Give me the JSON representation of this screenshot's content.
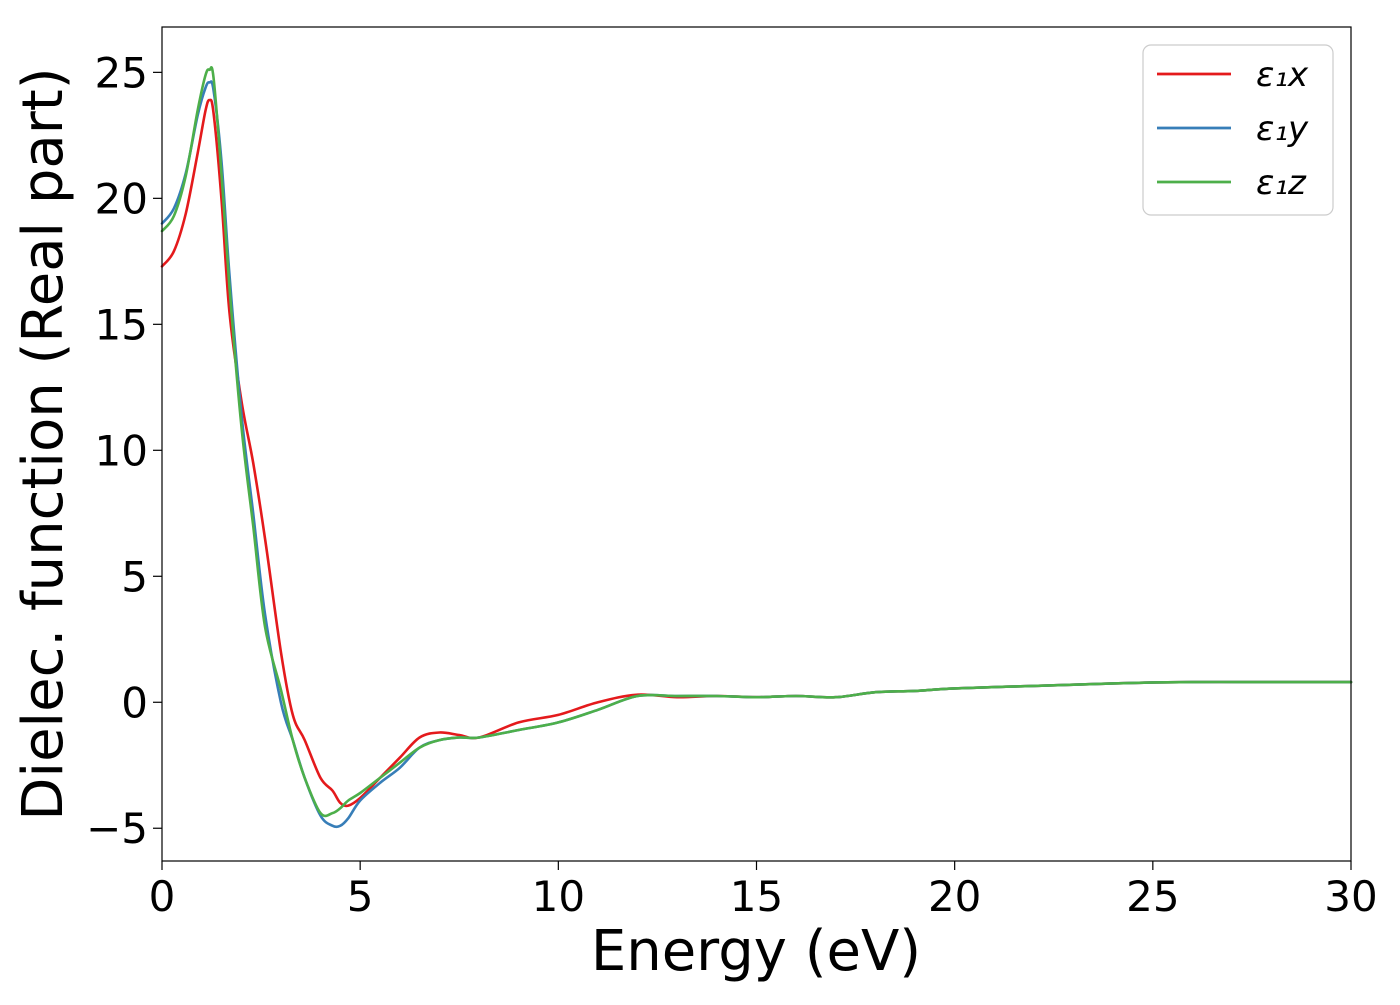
{
  "chart_data": {
    "type": "line",
    "title": "",
    "xlabel": "Energy (eV)",
    "ylabel": "Dielec. function (Real part)",
    "xlim": [
      0,
      30
    ],
    "ylim": [
      -6.3,
      26.8
    ],
    "xticks": [
      0,
      5,
      10,
      15,
      20,
      25,
      30
    ],
    "xtick_labels": [
      "0",
      "5",
      "10",
      "15",
      "20",
      "25",
      "30"
    ],
    "yticks": [
      -5,
      0,
      5,
      10,
      15,
      20,
      25
    ],
    "ytick_labels": [
      "−5",
      "0",
      "5",
      "10",
      "15",
      "20",
      "25"
    ],
    "grid": false,
    "legend_position": "top-right",
    "series": [
      {
        "name": "ε₁x",
        "color": "#e41a1c",
        "x": [
          0,
          0.3,
          0.6,
          0.9,
          1.1,
          1.2,
          1.3,
          1.5,
          1.7,
          2.0,
          2.3,
          2.6,
          3.0,
          3.3,
          3.6,
          4.0,
          4.3,
          4.5,
          4.7,
          5.0,
          5.5,
          6.0,
          6.5,
          7.0,
          7.5,
          8.0,
          9.0,
          10.0,
          11.0,
          12.0,
          13.0,
          14.0,
          15.0,
          16.0,
          17.0,
          18.0,
          19.0,
          20.0,
          22.0,
          24.0,
          26.0,
          28.0,
          30.0
        ],
        "y": [
          17.3,
          17.9,
          19.4,
          21.8,
          23.5,
          23.9,
          23.4,
          20.0,
          15.5,
          12.0,
          9.5,
          6.5,
          2.0,
          -0.5,
          -1.5,
          -3.0,
          -3.5,
          -4.0,
          -4.1,
          -3.8,
          -3.0,
          -2.2,
          -1.4,
          -1.2,
          -1.3,
          -1.4,
          -0.8,
          -0.5,
          0.0,
          0.3,
          0.2,
          0.25,
          0.2,
          0.25,
          0.2,
          0.4,
          0.45,
          0.55,
          0.65,
          0.75,
          0.8,
          0.8,
          0.8
        ]
      },
      {
        "name": "ε₁y",
        "color": "#377eb8",
        "x": [
          0,
          0.3,
          0.6,
          0.9,
          1.1,
          1.2,
          1.3,
          1.5,
          1.7,
          2.0,
          2.3,
          2.6,
          3.0,
          3.3,
          3.6,
          4.0,
          4.3,
          4.5,
          4.7,
          5.0,
          5.5,
          6.0,
          6.5,
          7.0,
          7.5,
          8.0,
          9.0,
          10.0,
          11.0,
          12.0,
          13.0,
          14.0,
          15.0,
          16.0,
          17.0,
          18.0,
          19.0,
          20.0,
          22.0,
          24.0,
          26.0,
          28.0,
          30.0
        ],
        "y": [
          19.0,
          19.6,
          21.0,
          23.3,
          24.4,
          24.6,
          24.3,
          21.5,
          17.0,
          11.5,
          7.5,
          3.5,
          0.0,
          -1.5,
          -3.0,
          -4.5,
          -4.9,
          -4.9,
          -4.6,
          -3.9,
          -3.2,
          -2.6,
          -1.8,
          -1.5,
          -1.4,
          -1.4,
          -1.1,
          -0.8,
          -0.3,
          0.25,
          0.25,
          0.25,
          0.2,
          0.25,
          0.2,
          0.4,
          0.45,
          0.55,
          0.65,
          0.75,
          0.8,
          0.8,
          0.8
        ]
      },
      {
        "name": "ε₁z",
        "color": "#4daf4a",
        "x": [
          0,
          0.3,
          0.6,
          0.9,
          1.1,
          1.2,
          1.3,
          1.5,
          1.7,
          2.0,
          2.3,
          2.6,
          3.0,
          3.3,
          3.6,
          4.0,
          4.3,
          4.5,
          4.7,
          5.0,
          5.5,
          6.0,
          6.5,
          7.0,
          7.5,
          8.0,
          9.0,
          10.0,
          11.0,
          12.0,
          13.0,
          14.0,
          15.0,
          16.0,
          17.0,
          18.0,
          19.0,
          20.0,
          22.0,
          24.0,
          26.0,
          28.0,
          30.0
        ],
        "y": [
          18.7,
          19.3,
          20.9,
          23.5,
          24.9,
          25.1,
          24.8,
          21.0,
          16.5,
          11.0,
          7.0,
          3.0,
          0.5,
          -1.5,
          -3.0,
          -4.4,
          -4.4,
          -4.2,
          -3.9,
          -3.6,
          -3.0,
          -2.4,
          -1.8,
          -1.5,
          -1.4,
          -1.4,
          -1.1,
          -0.8,
          -0.3,
          0.25,
          0.25,
          0.25,
          0.2,
          0.25,
          0.2,
          0.4,
          0.45,
          0.55,
          0.65,
          0.75,
          0.8,
          0.8,
          0.8
        ]
      }
    ]
  }
}
